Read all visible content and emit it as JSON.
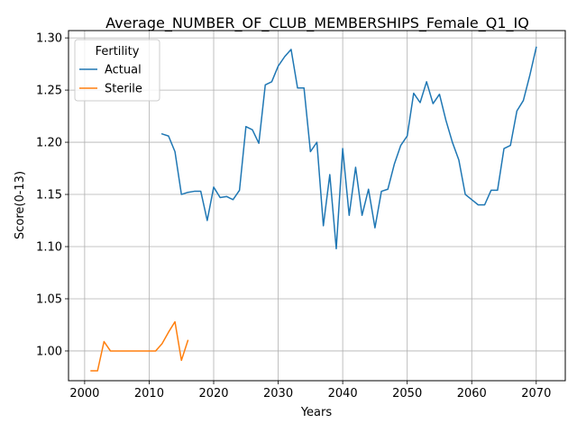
{
  "chart_data": {
    "type": "line",
    "title": "Average_NUMBER_OF_CLUB_MEMBERSHIPS_Female_Q1_IQ",
    "xlabel": "Years",
    "ylabel": "Score(0-13)",
    "xlim": [
      1997.5,
      2074.5
    ],
    "ylim": [
      0.9715,
      1.307
    ],
    "xticks": [
      2000,
      2010,
      2020,
      2030,
      2040,
      2050,
      2060,
      2070
    ],
    "yticks": [
      1.0,
      1.05,
      1.1,
      1.15,
      1.2,
      1.25,
      1.3
    ],
    "grid": true,
    "legend": {
      "title": "Fertility",
      "placement": "top-left"
    },
    "series": [
      {
        "name": "Actual",
        "color": "#1f77b4",
        "x": [
          2012,
          2013,
          2014,
          2015,
          2016,
          2017,
          2018,
          2019,
          2020,
          2021,
          2022,
          2023,
          2024,
          2025,
          2026,
          2027,
          2028,
          2029,
          2030,
          2031,
          2032,
          2033,
          2034,
          2035,
          2036,
          2037,
          2038,
          2039,
          2040,
          2041,
          2042,
          2043,
          2044,
          2045,
          2046,
          2047,
          2048,
          2049,
          2050,
          2051,
          2052,
          2053,
          2054,
          2055,
          2056,
          2057,
          2058,
          2059,
          2060,
          2061,
          2062,
          2063,
          2064,
          2065,
          2066,
          2067,
          2068,
          2069,
          2070
        ],
        "y": [
          1.208,
          1.206,
          1.191,
          1.15,
          1.152,
          1.153,
          1.153,
          1.125,
          1.157,
          1.147,
          1.148,
          1.145,
          1.154,
          1.215,
          1.212,
          1.199,
          1.255,
          1.258,
          1.273,
          1.282,
          1.289,
          1.252,
          1.252,
          1.191,
          1.2,
          1.12,
          1.169,
          1.098,
          1.194,
          1.13,
          1.176,
          1.13,
          1.155,
          1.118,
          1.153,
          1.155,
          1.179,
          1.197,
          1.206,
          1.247,
          1.238,
          1.258,
          1.237,
          1.246,
          1.221,
          1.2,
          1.183,
          1.15,
          1.145,
          1.14,
          1.14,
          1.154,
          1.154,
          1.194,
          1.197,
          1.23,
          1.24,
          1.264,
          1.291
        ]
      },
      {
        "name": "Sterile",
        "color": "#ff7f0e",
        "x": [
          2001,
          2002,
          2003,
          2004,
          2005,
          2006,
          2007,
          2008,
          2009,
          2010,
          2011,
          2012,
          2013,
          2014,
          2015,
          2016
        ],
        "y": [
          0.981,
          0.981,
          1.009,
          1.0,
          1.0,
          1.0,
          1.0,
          1.0,
          1.0,
          1.0,
          1.0,
          1.007,
          1.018,
          1.028,
          0.991,
          1.01
        ]
      }
    ]
  }
}
